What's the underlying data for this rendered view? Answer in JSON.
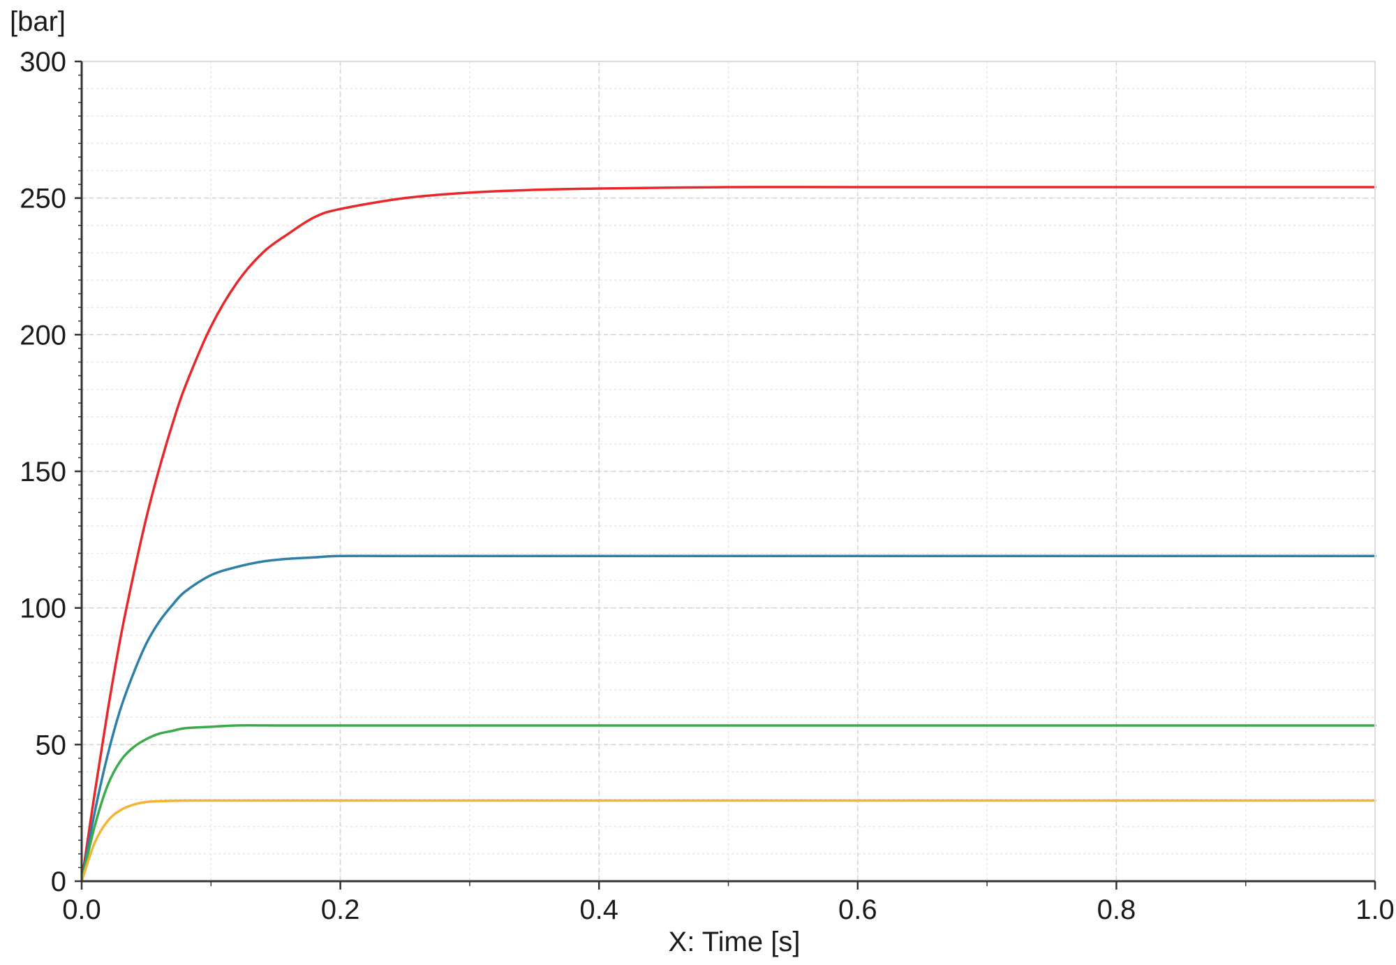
{
  "chart_data": {
    "type": "line",
    "xlabel": "X: Time [s]",
    "ylabel": "[bar]",
    "xlim": [
      0.0,
      1.0
    ],
    "ylim": [
      0,
      300
    ],
    "x_ticks": [
      "0.0",
      "0.2",
      "0.4",
      "0.6",
      "0.8",
      "1.0"
    ],
    "y_ticks": [
      "0",
      "50",
      "100",
      "150",
      "200",
      "250",
      "300"
    ],
    "grid": true,
    "series": [
      {
        "color": "#e8272a",
        "x": [
          0,
          0.01,
          0.02,
          0.03,
          0.04,
          0.05,
          0.06,
          0.07,
          0.08,
          0.1,
          0.12,
          0.14,
          0.16,
          0.18,
          0.2,
          0.25,
          0.3,
          0.35,
          0.4,
          0.5,
          0.6,
          0.8,
          1.0
        ],
        "y": [
          0,
          32,
          62,
          89,
          112,
          133,
          151,
          167,
          181,
          203,
          219,
          230,
          237,
          243,
          246,
          250,
          252,
          253,
          253.5,
          254,
          254,
          254,
          254
        ]
      },
      {
        "color": "#2e7fa8",
        "x": [
          0,
          0.01,
          0.02,
          0.03,
          0.04,
          0.05,
          0.06,
          0.07,
          0.08,
          0.1,
          0.12,
          0.14,
          0.16,
          0.18,
          0.2,
          0.25,
          0.3,
          0.4,
          0.6,
          0.8,
          1.0
        ],
        "y": [
          0,
          25,
          46,
          63,
          76,
          87,
          95,
          101,
          106,
          112,
          115,
          117,
          118,
          118.5,
          119,
          119,
          119,
          119,
          119,
          119,
          119
        ]
      },
      {
        "color": "#3aaa4a",
        "x": [
          0,
          0.01,
          0.02,
          0.03,
          0.04,
          0.05,
          0.06,
          0.07,
          0.08,
          0.1,
          0.12,
          0.15,
          0.2,
          0.3,
          0.5,
          1.0
        ],
        "y": [
          0,
          20,
          35,
          44,
          49,
          52,
          54,
          55,
          56,
          56.5,
          57,
          57,
          57,
          57,
          57,
          57
        ]
      },
      {
        "color": "#f2b431",
        "x": [
          0,
          0.01,
          0.02,
          0.03,
          0.04,
          0.05,
          0.06,
          0.08,
          0.1,
          0.2,
          0.5,
          1.0
        ],
        "y": [
          0,
          14,
          22,
          26,
          28,
          29,
          29.3,
          29.5,
          29.5,
          29.5,
          29.5,
          29.5
        ]
      }
    ]
  }
}
